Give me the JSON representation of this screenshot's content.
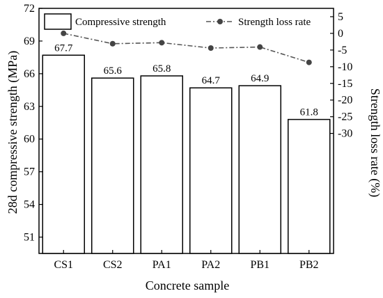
{
  "chart_data": {
    "type": "bar",
    "categories": [
      "CS1",
      "CS2",
      "PA1",
      "PA2",
      "PB1",
      "PB2"
    ],
    "series": [
      {
        "name": "Compressive strength",
        "kind": "bar",
        "axis": "left",
        "values": [
          67.7,
          65.6,
          65.8,
          64.7,
          64.9,
          61.8
        ],
        "labels": [
          "67.7",
          "65.6",
          "65.8",
          "64.7",
          "64.9",
          "61.8"
        ]
      },
      {
        "name": "Strength loss rate",
        "kind": "line",
        "axis": "right",
        "values": [
          0,
          -3.1,
          -2.8,
          -4.4,
          -4.1,
          -8.7
        ]
      }
    ],
    "xlabel": "Concrete sample",
    "ylabel": "28d compressive strength (MPa)",
    "y2label": "Strength loss rate (%)",
    "ylim": [
      49.5,
      72
    ],
    "yticks": [
      "51",
      "54",
      "57",
      "60",
      "63",
      "66",
      "69",
      "72"
    ],
    "y2lim": [
      -66,
      7.5
    ],
    "y2ticks": [
      "5",
      "0",
      "-5",
      "-10",
      "-15",
      "-20",
      "-25",
      "-30"
    ],
    "legend_position": "top",
    "grid": false,
    "colors": {
      "bar_fill": "#ffffff",
      "bar_stroke": "#000000",
      "line": "#555555",
      "marker": "#444444"
    }
  }
}
